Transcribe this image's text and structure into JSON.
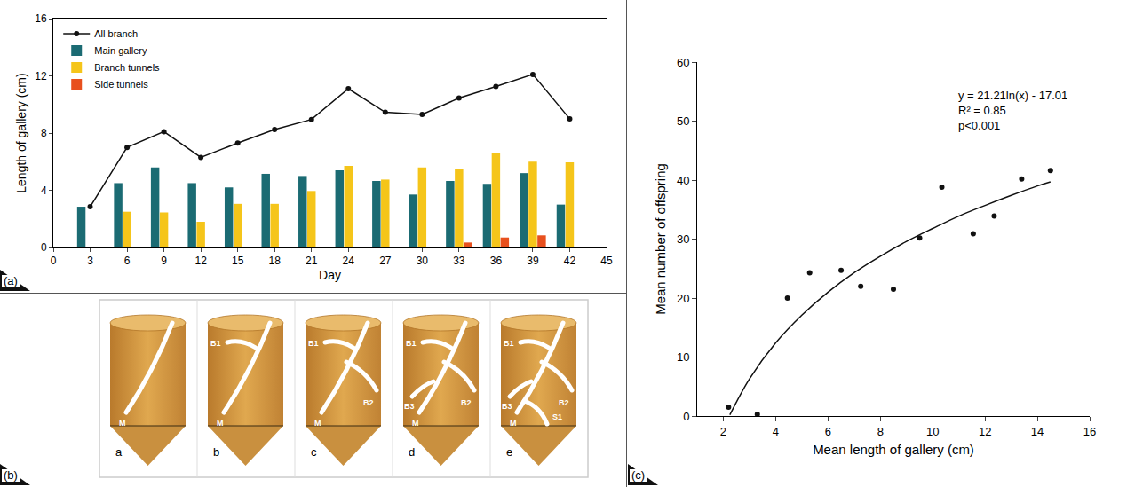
{
  "chart_data": [
    {
      "type": "bar",
      "panel": "(a)",
      "x_label": "Day",
      "y_label": "Length of gallery (cm)",
      "x": [
        3,
        6,
        9,
        12,
        15,
        18,
        21,
        24,
        27,
        30,
        33,
        36,
        39,
        42
      ],
      "xlim": [
        0,
        45
      ],
      "xticks": [
        0,
        3,
        6,
        9,
        12,
        15,
        18,
        21,
        24,
        27,
        30,
        33,
        36,
        39,
        42,
        45
      ],
      "ylim": [
        0,
        16
      ],
      "yticks": [
        0,
        4,
        8,
        12,
        16
      ],
      "grid": false,
      "legend": "top-left",
      "series": [
        {
          "name": "All branch",
          "type": "line",
          "marker": "circle",
          "color": "#111111",
          "values": [
            2.85,
            7.0,
            8.1,
            6.3,
            7.3,
            8.25,
            8.95,
            11.1,
            9.45,
            9.3,
            10.45,
            11.25,
            12.1,
            9.0
          ]
        },
        {
          "name": "Main gallery",
          "type": "bar",
          "color": "#1b6b73",
          "values": [
            2.85,
            4.5,
            5.6,
            4.5,
            4.2,
            5.15,
            5.0,
            5.4,
            4.65,
            3.7,
            4.65,
            4.45,
            5.2,
            3.0
          ]
        },
        {
          "name": "Branch tunnels",
          "type": "bar",
          "color": "#f5c51a",
          "values": [
            null,
            2.5,
            2.45,
            1.8,
            3.05,
            3.05,
            3.95,
            5.7,
            4.75,
            5.6,
            5.45,
            6.6,
            6.0,
            5.95
          ]
        },
        {
          "name": "Side tunnels",
          "type": "bar",
          "color": "#e8501e",
          "values": [
            null,
            null,
            null,
            null,
            null,
            null,
            null,
            null,
            null,
            null,
            0.35,
            0.7,
            0.85,
            null
          ]
        }
      ]
    },
    {
      "type": "scatter",
      "panel": "(c)",
      "x_label": "Mean length of gallery (cm)",
      "y_label": "Mean number of offspring",
      "xlim": [
        1,
        16
      ],
      "xticks": [
        2,
        4,
        6,
        8,
        10,
        12,
        14,
        16
      ],
      "ylim": [
        0,
        60
      ],
      "yticks": [
        0,
        10,
        20,
        30,
        40,
        50,
        60
      ],
      "grid": false,
      "annotation": [
        "y = 21.21ln(x) - 17.01",
        "R² = 0.85",
        "p<0.001"
      ],
      "series": [
        {
          "type": "scatter",
          "marker": "circle",
          "color": "#111111",
          "x": [
            2.2,
            3.3,
            4.45,
            5.3,
            6.5,
            7.25,
            8.5,
            9.5,
            10.35,
            11.55,
            12.35,
            13.4,
            14.5
          ],
          "values": [
            1.5,
            0.3,
            20,
            24.3,
            24.7,
            22,
            21.5,
            30.2,
            38.8,
            30.9,
            33.9,
            40.2,
            41.6
          ]
        },
        {
          "type": "line",
          "color": "#111111",
          "x": [
            2.25,
            3,
            4,
            5,
            6,
            7,
            8,
            9,
            10,
            11,
            12,
            13,
            14,
            14.5
          ],
          "values": [
            0.2,
            6.3,
            12.4,
            17.1,
            21.0,
            24.3,
            27.1,
            29.6,
            31.8,
            33.9,
            35.7,
            37.4,
            39.0,
            39.7
          ]
        }
      ]
    }
  ],
  "diagram": {
    "panel": "(b)",
    "stages": [
      {
        "label": "a",
        "tunnels": [
          "M"
        ]
      },
      {
        "label": "b",
        "tunnels": [
          "M",
          "B1"
        ]
      },
      {
        "label": "c",
        "tunnels": [
          "M",
          "B1",
          "B2"
        ]
      },
      {
        "label": "d",
        "tunnels": [
          "M",
          "B1",
          "B2",
          "B3"
        ]
      },
      {
        "label": "e",
        "tunnels": [
          "M",
          "B1",
          "B2",
          "B3",
          "S1"
        ]
      }
    ]
  }
}
